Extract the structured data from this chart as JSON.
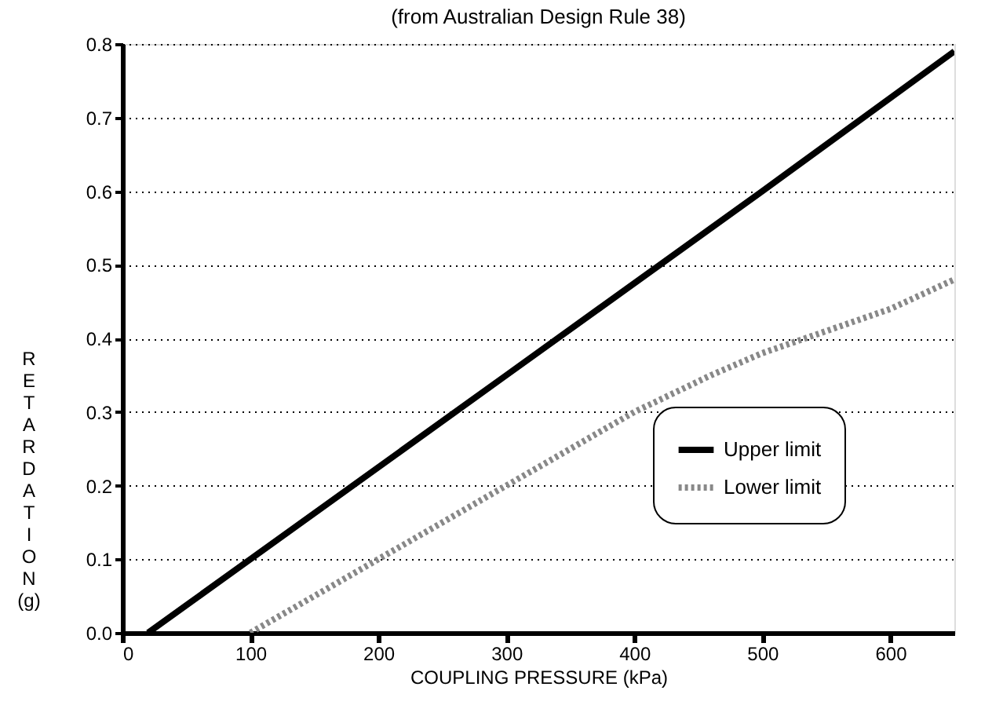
{
  "chart_data": {
    "type": "line",
    "title": "(from Australian Design Rule 38)",
    "xlabel": "COUPLING PRESSURE (kPa)",
    "ylabel": "RETARDATION (g)",
    "series": [
      {
        "name": "Upper limit",
        "color": "#000000",
        "line_style": "solid",
        "x": [
          20,
          100,
          300,
          500,
          650
        ],
        "values": [
          0,
          0.1,
          0.35,
          0.6,
          0.79
        ]
      },
      {
        "name": "Lower limit",
        "color": "#888888",
        "line_style": "dotted",
        "x": [
          100,
          200,
          300,
          400,
          460,
          500,
          600,
          650
        ],
        "values": [
          0,
          0.1,
          0.2,
          0.3,
          0.35,
          0.38,
          0.44,
          0.48
        ]
      }
    ],
    "xlim": [
      0,
      650
    ],
    "xticks": [
      0,
      100,
      200,
      300,
      400,
      500,
      600
    ],
    "ylim": [
      0,
      0.8
    ],
    "yticks": [
      {
        "value": 0,
        "label": "0.0"
      },
      0.1,
      0.2,
      0.3,
      0.4,
      0.5,
      0.6,
      0.7,
      0.8
    ],
    "grid": "y",
    "legend": "bottom right",
    "marker": "none"
  }
}
